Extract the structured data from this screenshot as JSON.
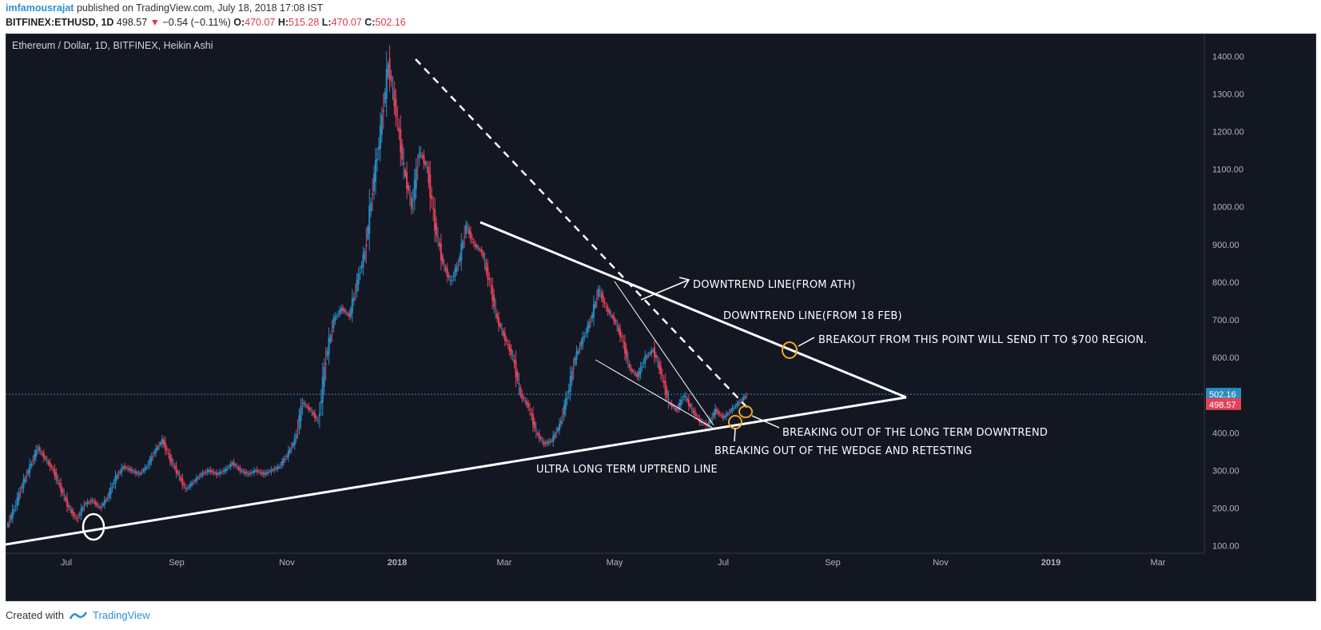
{
  "header": {
    "user": "imfamousrajat",
    "published": "published on TradingView.com, July 18, 2018 17:08 IST",
    "symbol": "BITFINEX:ETHUSD, 1D",
    "last": "498.57",
    "change": "−0.54 (−0.11%)",
    "o_label": "O:",
    "o_value": "470.07",
    "h_label": "H:",
    "h_value": "515.28",
    "l_label": "L:",
    "l_value": "470.07",
    "c_label": "C:",
    "c_value": "502.16"
  },
  "footer": {
    "created_with": "Created with",
    "brand": "TradingView"
  },
  "colors": {
    "background": "#131722",
    "up": "#2b8bc2",
    "down": "#e0435a",
    "trendline": "#ffffff",
    "circle_orange": "#f5a623",
    "price_line": "#2b8bc2"
  },
  "chart_data": {
    "type": "candlestick",
    "title": "Ethereum / Dollar, 1D, BITFINEX, Heikin Ashi",
    "ylim": [
      80,
      1460
    ],
    "y_ticks": [
      "1400.00",
      "1300.00",
      "1200.00",
      "1100.00",
      "1000.00",
      "900.00",
      "800.00",
      "700.00",
      "600.00",
      "500.00",
      "400.00",
      "300.00",
      "200.00",
      "100.00"
    ],
    "x_ticks": [
      "Jul",
      "Sep",
      "Nov",
      "2018",
      "Mar",
      "May",
      "Jul",
      "Sep",
      "Nov",
      "2019",
      "Mar"
    ],
    "current_price_label": "502.16",
    "last_price_label": "498.57",
    "series": [
      {
        "path": [
          [
            0,
            150
          ],
          [
            4,
            200
          ],
          [
            8,
            260
          ],
          [
            12,
            310
          ],
          [
            16,
            360
          ],
          [
            20,
            330
          ],
          [
            24,
            300
          ],
          [
            28,
            250
          ],
          [
            32,
            200
          ],
          [
            36,
            170
          ],
          [
            40,
            210
          ],
          [
            44,
            220
          ],
          [
            48,
            200
          ],
          [
            52,
            230
          ],
          [
            56,
            280
          ],
          [
            60,
            310
          ],
          [
            64,
            300
          ],
          [
            68,
            290
          ],
          [
            72,
            310
          ],
          [
            76,
            350
          ],
          [
            80,
            380
          ],
          [
            84,
            330
          ],
          [
            88,
            290
          ],
          [
            92,
            250
          ],
          [
            96,
            270
          ],
          [
            100,
            290
          ],
          [
            104,
            300
          ],
          [
            108,
            290
          ],
          [
            112,
            300
          ],
          [
            116,
            320
          ],
          [
            120,
            300
          ],
          [
            124,
            290
          ],
          [
            128,
            300
          ],
          [
            132,
            290
          ],
          [
            136,
            300
          ],
          [
            140,
            310
          ],
          [
            144,
            340
          ],
          [
            148,
            380
          ],
          [
            152,
            480
          ],
          [
            156,
            460
          ],
          [
            160,
            430
          ],
          [
            164,
            600
          ],
          [
            168,
            700
          ],
          [
            172,
            730
          ],
          [
            176,
            710
          ],
          [
            180,
            800
          ],
          [
            184,
            880
          ],
          [
            188,
            1050
          ],
          [
            192,
            1200
          ],
          [
            196,
            1380
          ],
          [
            200,
            1250
          ],
          [
            204,
            1100
          ],
          [
            208,
            1000
          ],
          [
            212,
            1150
          ],
          [
            216,
            1100
          ],
          [
            220,
            950
          ],
          [
            224,
            850
          ],
          [
            228,
            800
          ],
          [
            232,
            850
          ],
          [
            236,
            950
          ],
          [
            240,
            900
          ],
          [
            244,
            880
          ],
          [
            248,
            800
          ],
          [
            252,
            700
          ],
          [
            256,
            650
          ],
          [
            260,
            600
          ],
          [
            264,
            500
          ],
          [
            268,
            470
          ],
          [
            272,
            400
          ],
          [
            276,
            370
          ],
          [
            280,
            380
          ],
          [
            284,
            420
          ],
          [
            288,
            500
          ],
          [
            292,
            600
          ],
          [
            296,
            650
          ],
          [
            300,
            700
          ],
          [
            304,
            780
          ],
          [
            308,
            730
          ],
          [
            312,
            700
          ],
          [
            316,
            650
          ],
          [
            320,
            570
          ],
          [
            324,
            550
          ],
          [
            328,
            600
          ],
          [
            332,
            620
          ],
          [
            336,
            560
          ],
          [
            340,
            480
          ],
          [
            344,
            460
          ],
          [
            348,
            500
          ],
          [
            352,
            460
          ],
          [
            356,
            430
          ],
          [
            360,
            420
          ],
          [
            364,
            460
          ],
          [
            368,
            440
          ],
          [
            372,
            460
          ],
          [
            376,
            480
          ],
          [
            380,
            500
          ]
        ]
      }
    ],
    "trendlines": [
      {
        "name": "ultra-long-term-uptrend",
        "from": [
          "2017-05-15",
          90
        ],
        "to": [
          "2018-10-09",
          500
        ],
        "style": "solid"
      },
      {
        "name": "downtrend-from-ath",
        "from": [
          "2018-01-13",
          1420
        ],
        "to": [
          "2018-07-15",
          470
        ],
        "style": "dashed"
      },
      {
        "name": "downtrend-from-18-feb",
        "from": [
          "2018-02-18",
          980
        ],
        "to": [
          "2018-10-09",
          500
        ],
        "style": "solid"
      }
    ],
    "annotations": [
      "DOWNTREND LINE(FROM ATH)",
      "DOWNTREND LINE(FROM 18 FEB)",
      "BREAKOUT FROM THIS POINT WILL SEND IT TO $700 REGION.",
      "BREAKING OUT OF THE LONG TERM DOWNTREND",
      "BREAKING OUT OF THE WEDGE AND RETESTING",
      "ULTRA LONG TERM UPTREND LINE"
    ]
  }
}
